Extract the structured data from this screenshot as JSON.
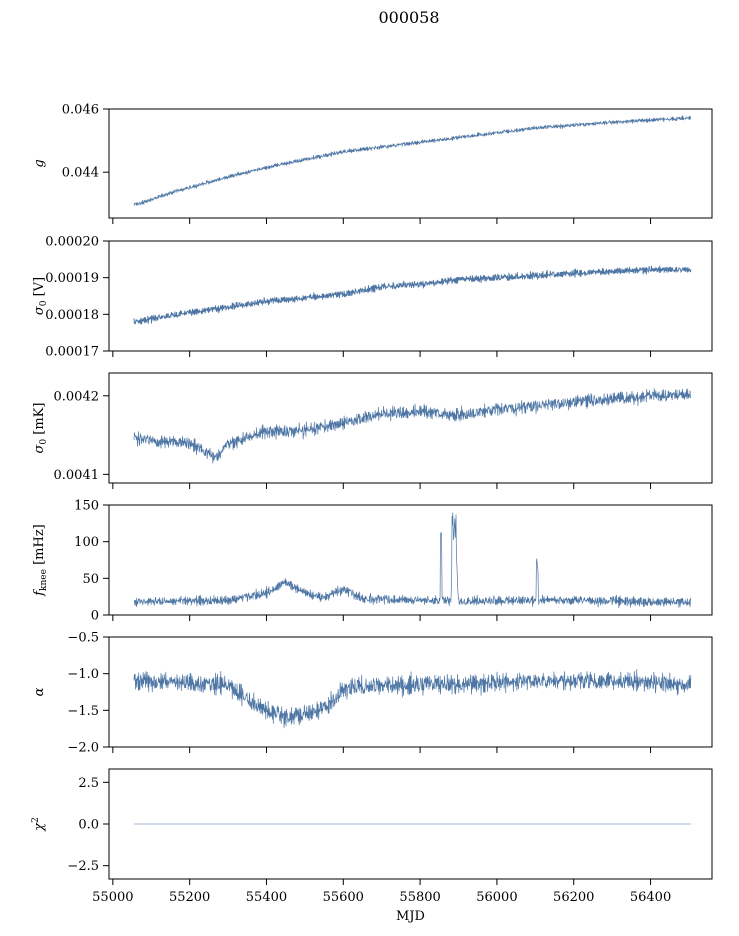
{
  "figure": {
    "title": "000058"
  },
  "colors": {
    "series": "#4e76a4",
    "axes": "#000000",
    "background": "#ffffff"
  },
  "chart_data": [
    {
      "type": "line",
      "name": "gain",
      "ylabel": "g",
      "ylabel_kind": "italic",
      "xlim": [
        54990,
        56560
      ],
      "ylim": [
        0.04255,
        0.046
      ],
      "yticks": [
        0.044,
        0.046
      ],
      "ytick_labels": [
        "0.044",
        "0.046"
      ],
      "xticks": [
        55000,
        55200,
        55400,
        55600,
        55800,
        56000,
        56200,
        56400
      ],
      "xtick_labels": [],
      "trend": [
        [
          55055,
          0.04298
        ],
        [
          55070,
          0.043
        ],
        [
          55150,
          0.04335
        ],
        [
          55300,
          0.04385
        ],
        [
          55400,
          0.04415
        ],
        [
          55500,
          0.0444
        ],
        [
          55600,
          0.04465
        ],
        [
          55700,
          0.0448
        ],
        [
          55800,
          0.04495
        ],
        [
          55900,
          0.0451
        ],
        [
          56000,
          0.04525
        ],
        [
          56100,
          0.0454
        ],
        [
          56200,
          0.04548
        ],
        [
          56300,
          0.04558
        ],
        [
          56400,
          0.04565
        ],
        [
          56505,
          0.04572
        ]
      ],
      "noise": 6e-05,
      "linewidth": 0.7
    },
    {
      "type": "line",
      "name": "sigma0-volts",
      "ylabel": "σ₀ [V]",
      "ylabel_kind": "sigma0",
      "ylabel_unit": " [V]",
      "xlim": [
        54990,
        56560
      ],
      "ylim": [
        0.00017,
        0.0002
      ],
      "yticks": [
        0.00017,
        0.00018,
        0.00019,
        0.0002
      ],
      "ytick_labels": [
        "0.00017",
        "0.00018",
        "0.00019",
        "0.00020"
      ],
      "xticks": [
        55000,
        55200,
        55400,
        55600,
        55800,
        56000,
        56200,
        56400
      ],
      "xtick_labels": [],
      "trend": [
        [
          55055,
          0.000178
        ],
        [
          55200,
          0.0001805
        ],
        [
          55400,
          0.0001835
        ],
        [
          55600,
          0.0001855
        ],
        [
          55700,
          0.0001875
        ],
        [
          55800,
          0.0001882
        ],
        [
          55900,
          0.0001895
        ],
        [
          56000,
          0.00019
        ],
        [
          56200,
          0.0001912
        ],
        [
          56400,
          0.0001922
        ],
        [
          56505,
          0.0001922
        ]
      ],
      "noise": 9e-07,
      "linewidth": 0.9
    },
    {
      "type": "line",
      "name": "sigma0-millikelvin",
      "ylabel": "σ₀ [mK]",
      "ylabel_kind": "sigma0",
      "ylabel_unit": " [mK]",
      "xlim": [
        54990,
        56560
      ],
      "ylim": [
        0.004089,
        0.004229
      ],
      "yticks": [
        0.0041,
        0.0042
      ],
      "ytick_labels": [
        "0.0041",
        "0.0042"
      ],
      "xticks": [
        55000,
        55200,
        55400,
        55600,
        55800,
        56000,
        56200,
        56400
      ],
      "xtick_labels": [],
      "trend": [
        [
          55055,
          0.004145
        ],
        [
          55200,
          0.00414
        ],
        [
          55270,
          0.00412
        ],
        [
          55300,
          0.00414
        ],
        [
          55400,
          0.004155
        ],
        [
          55500,
          0.004155
        ],
        [
          55600,
          0.004165
        ],
        [
          55700,
          0.004178
        ],
        [
          55800,
          0.00418
        ],
        [
          55900,
          0.004175
        ],
        [
          56000,
          0.004182
        ],
        [
          56200,
          0.004192
        ],
        [
          56400,
          0.0042
        ],
        [
          56505,
          0.004202
        ]
      ],
      "noise": 8e-06,
      "linewidth": 0.7
    },
    {
      "type": "line",
      "name": "fknee",
      "ylabel": "f_knee [mHz]",
      "ylabel_kind": "fknee",
      "xlim": [
        54990,
        56560
      ],
      "ylim": [
        0,
        150
      ],
      "yticks": [
        0,
        50,
        100,
        150
      ],
      "ytick_labels": [
        "0",
        "50",
        "100",
        "150"
      ],
      "xticks": [
        55000,
        55200,
        55400,
        55600,
        55800,
        56000,
        56200,
        56400
      ],
      "xtick_labels": [],
      "trend": [
        [
          55055,
          18
        ],
        [
          55300,
          20
        ],
        [
          55400,
          30
        ],
        [
          55450,
          45
        ],
        [
          55500,
          30
        ],
        [
          55550,
          24
        ],
        [
          55600,
          35
        ],
        [
          55650,
          22
        ],
        [
          55800,
          20
        ],
        [
          55880,
          20
        ],
        [
          55890,
          130
        ],
        [
          55900,
          18
        ],
        [
          56000,
          20
        ],
        [
          56200,
          20
        ],
        [
          56400,
          18
        ],
        [
          56505,
          18
        ]
      ],
      "spikes": [
        [
          55855,
          120
        ],
        [
          55885,
          150
        ],
        [
          55892,
          150
        ],
        [
          56105,
          78
        ]
      ],
      "noise": 6,
      "linewidth": 0.7
    },
    {
      "type": "line",
      "name": "alpha",
      "ylabel": "α",
      "ylabel_kind": "italic",
      "xlim": [
        54990,
        56560
      ],
      "ylim": [
        -2.0,
        -0.5
      ],
      "yticks": [
        -2.0,
        -1.5,
        -1.0,
        -0.5
      ],
      "ytick_labels": [
        "−2.0",
        "−1.5",
        "−1.0",
        "−0.5"
      ],
      "xticks": [
        55000,
        55200,
        55400,
        55600,
        55800,
        56000,
        56200,
        56400
      ],
      "xtick_labels": [],
      "trend": [
        [
          55055,
          -1.1
        ],
        [
          55300,
          -1.15
        ],
        [
          55350,
          -1.35
        ],
        [
          55400,
          -1.5
        ],
        [
          55450,
          -1.6
        ],
        [
          55500,
          -1.55
        ],
        [
          55560,
          -1.45
        ],
        [
          55600,
          -1.2
        ],
        [
          55700,
          -1.15
        ],
        [
          55900,
          -1.15
        ],
        [
          56100,
          -1.1
        ],
        [
          56300,
          -1.1
        ],
        [
          56505,
          -1.15
        ]
      ],
      "noise": 0.12,
      "linewidth": 0.7
    },
    {
      "type": "line",
      "name": "chi2",
      "ylabel": "χ²",
      "ylabel_kind": "chi2",
      "xlim": [
        54990,
        56560
      ],
      "ylim": [
        -3.3,
        3.3
      ],
      "yticks": [
        -2.5,
        0.0,
        2.5
      ],
      "ytick_labels": [
        "−2.5",
        "0.0",
        "2.5"
      ],
      "xticks": [
        55000,
        55200,
        55400,
        55600,
        55800,
        56000,
        56200,
        56400
      ],
      "xtick_labels": [
        "55000",
        "55200",
        "55400",
        "55600",
        "55800",
        "56000",
        "56200",
        "56400"
      ],
      "xlabel": "MJD",
      "trend": [
        [
          55055,
          0.0
        ],
        [
          56505,
          0.0
        ]
      ],
      "noise": 0,
      "linewidth": 0.6
    }
  ]
}
